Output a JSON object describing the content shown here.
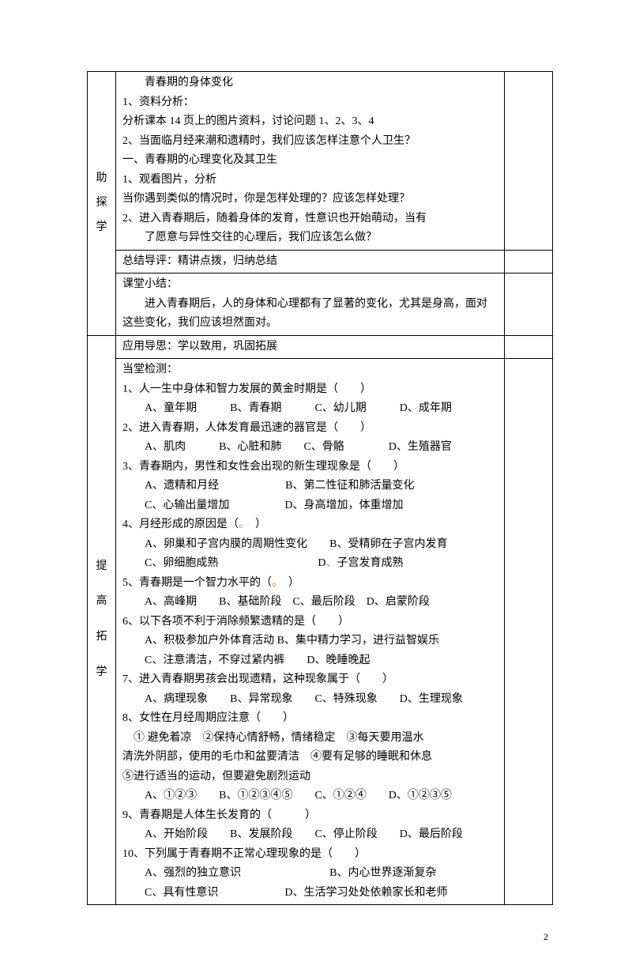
{
  "section1": {
    "label_chars": [
      "助",
      "探",
      "学"
    ],
    "block1": {
      "title": "青春期的身体变化",
      "lines": [
        "1、资料分析：",
        "分析课本 14 页上的图片资料，讨论问题 1、2、3、4",
        "2、当面临月经来潮和遗精时，我们应该怎样注意个人卫生？",
        "一、青春期的心理变化及其卫生",
        "1、观看图片，分析",
        "当你遇到类似的情况时，你是怎样处理的？应该怎样处理？",
        "2、进入青春期后，随着身体的发育，性意识也开始萌动，当有",
        "　　了愿意与异性交往的心理后，我们应该怎么做？"
      ]
    },
    "block2": "总结导评：精讲点拨，归纳总结",
    "block3": {
      "title": "课堂小结：",
      "body": "进入青春期后，人的身体和心理都有了显著的变化，尤其是身高，面对这些变化，我们应该坦然面对。"
    }
  },
  "section2": {
    "label_chars": [
      "提",
      "高",
      "拓",
      "学"
    ],
    "heading": "应用导思：学以致用，巩固拓展",
    "subhead": "当堂检测：",
    "q1": {
      "stem": "1、人一生中身体和智力发展的黄金时期是（　　）",
      "opts": "A、童年期　　　B、青春期　　　C、幼儿期　　　D、成年期"
    },
    "q2": {
      "stem": "2、进入青春期，人体发育最迅速的器官是（　　）",
      "opts": "A、肌肉　　　B、心脏和肺　　C、骨骼　　　　D、生殖器官"
    },
    "q3": {
      "stem": "3、青春期内，男性和女性会出现的新生理现象是（　　）",
      "optA": "A、遗精和月经",
      "optB": "B、第二性征和肺活量变化",
      "optC": "C、心输出量增加",
      "optD": "D、身高增加，体重增加"
    },
    "q4": {
      "stem_a": "4、月经形成的原因是（",
      "dot": "。",
      "stem_b": "　）",
      "optA": "A、卵巢和子宫内膜的周期性变化",
      "optB": "B、受精卵在子宫内发育",
      "optC": "C、卵细胞成熟",
      "optD_a": "D",
      "optD_dot": "、",
      "optD_b": "子宫发育成熟"
    },
    "q5": {
      "stem_a": "5、青春期是一个智力水平的（",
      "dot": "。",
      "stem_b": "　）",
      "opts": "A、高峰期　　B、基础阶段　C、最后阶段　D、启蒙阶段"
    },
    "q6": {
      "stem": "6、以下各项不利于消除频繁遗精的是（　　）",
      "line1": "A、积极参加户外体育活动 B、集中精力学习，进行益智娱乐",
      "line2": "C、注意清洁，不穿过紧内裤　　D、晚睡晚起"
    },
    "q7": {
      "stem": "7、进入青春期男孩会出现遗精，这种现象属于（　　）",
      "opts": "A、病理现象　　B、异常现象　　C、特殊现象　　D、生理现象"
    },
    "q8": {
      "stem": "8、女性在月经周期应注意（　　）",
      "l1": "　① 避免着凉　②保持心情舒畅，情绪稳定　③每天要用温水",
      "l2": "清洗外阴部，使用的毛巾和盆要清洁　④要有足够的睡眠和休息",
      "l3": "⑤进行适当的运动，但要避免剧烈运动",
      "opts": "A、①②③　　B、①②③④⑤　　C、①②④　　D、①②③⑤"
    },
    "q9": {
      "stem": "9、青春期是人体生长发育的（　　　）",
      "opts": "A、开始阶段　　B、发展阶段　　C、停止阶段　　D、最后阶段"
    },
    "q10": {
      "stem": "10、下列属于青春期不正常心理现象的是（　　）",
      "optA": "A、强烈的独立意识",
      "optB": "B、内心世界逐渐复杂",
      "optC": "C、具有性意识",
      "optD": "D、生活学习处处依赖家长和老师"
    }
  },
  "pagenum": "2"
}
